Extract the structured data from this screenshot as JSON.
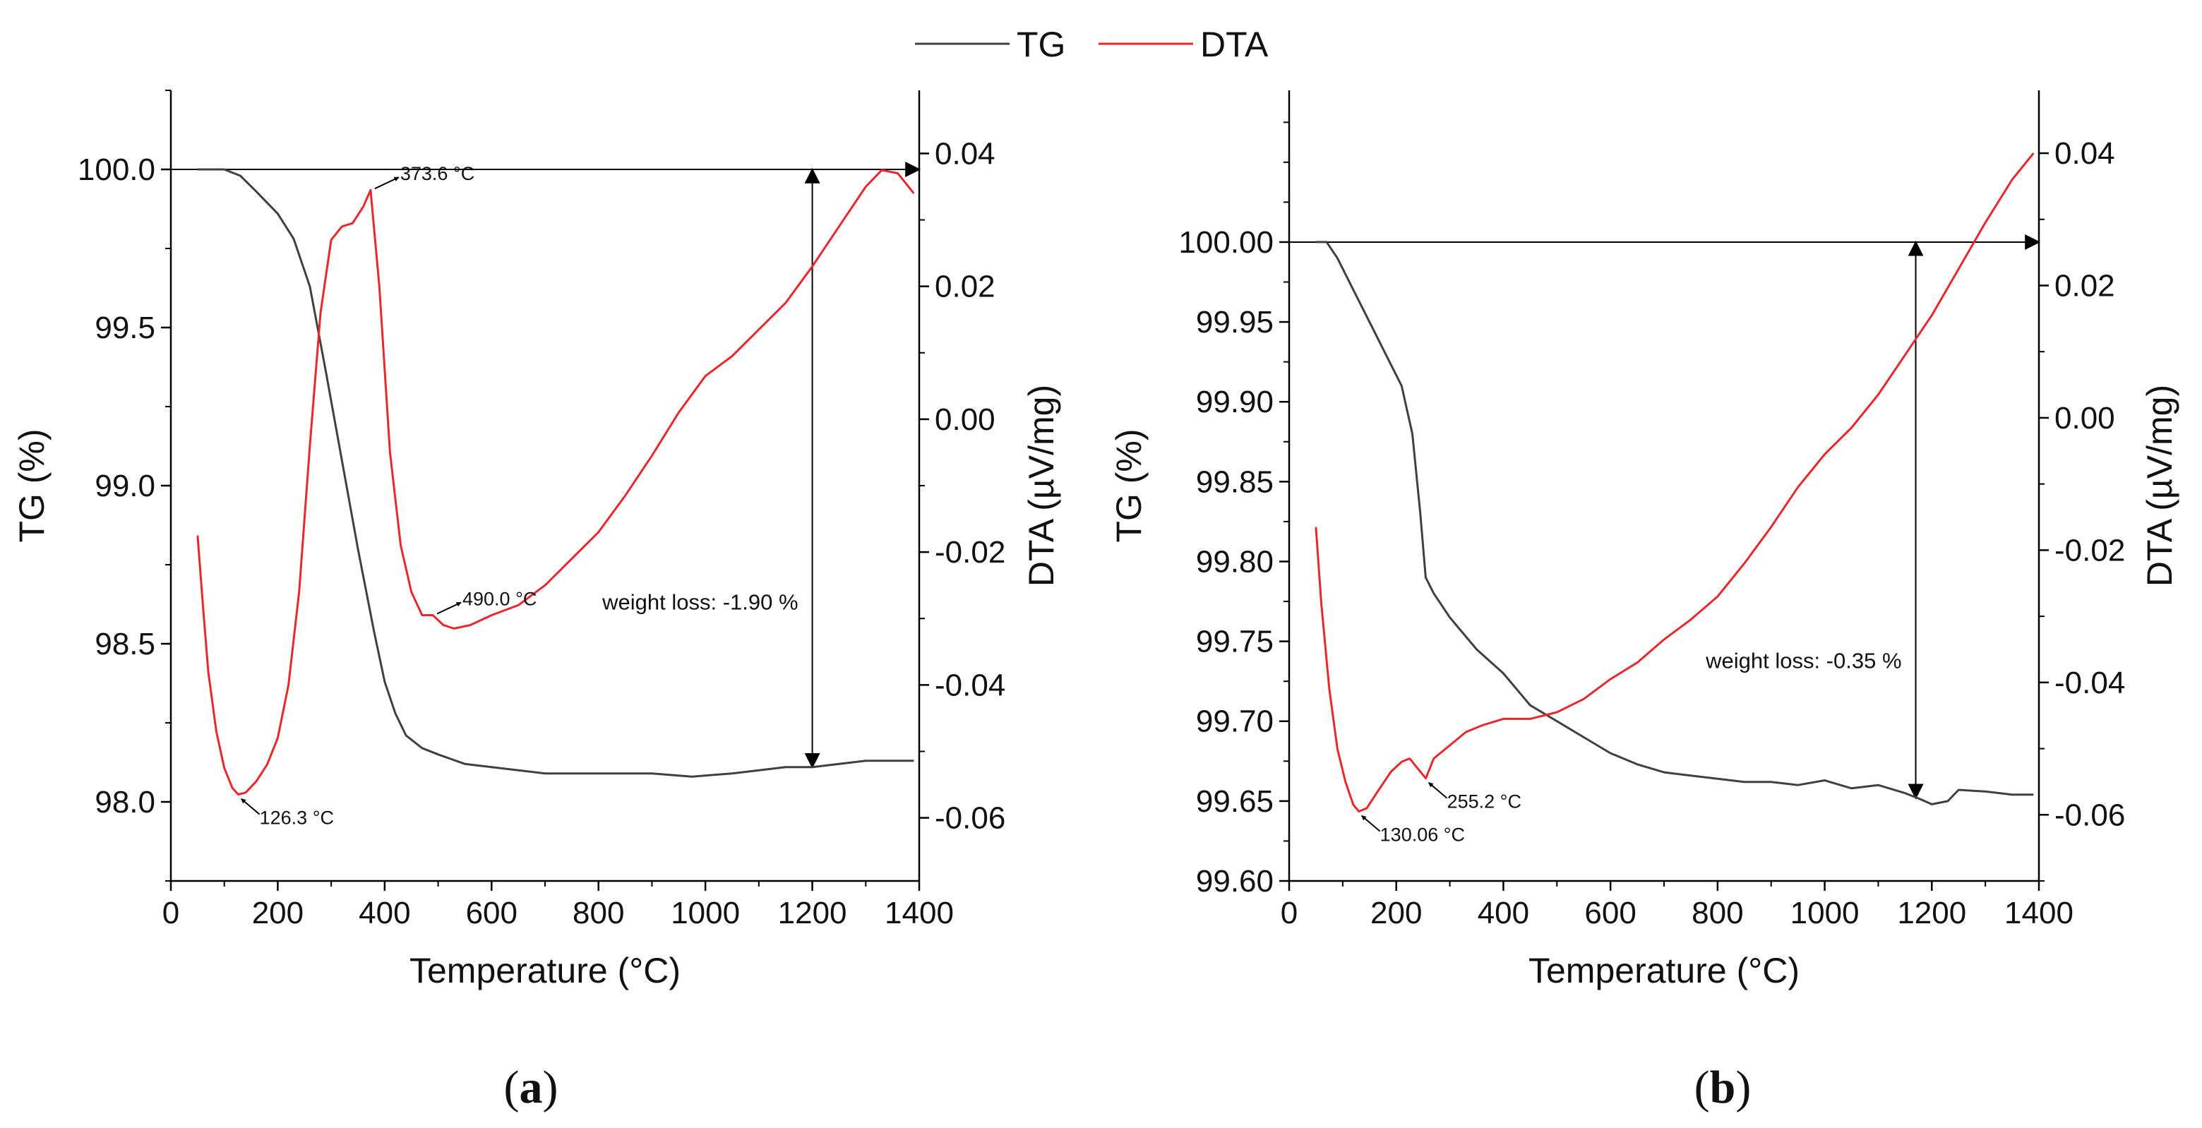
{
  "legend": {
    "tg_label": "TG",
    "dta_label": "DTA"
  },
  "colors": {
    "tg": "#404040",
    "dta": "#e8282a",
    "axis": "#000000"
  },
  "chart_data": [
    {
      "type": "line",
      "panel": "a",
      "panel_label": {
        "open": "(",
        "letter": "a",
        "close": ")"
      },
      "xlabel": "Temperature (°C)",
      "ylabel_left": "TG (%)",
      "ylabel_right": "DTA (µV/mg)",
      "xlim": [
        0,
        1400
      ],
      "ylim_left": [
        97.75,
        100.25
      ],
      "ylim_right": [
        -0.0695,
        0.0495
      ],
      "x_ticks": [
        0,
        200,
        400,
        600,
        800,
        1000,
        1200,
        1400
      ],
      "x_tick_labels": [
        "0",
        "200",
        "400",
        "600",
        "800",
        "1000",
        "1200",
        "1400"
      ],
      "yleft_ticks": [
        98.0,
        98.5,
        99.0,
        99.5,
        100.0
      ],
      "yleft_tick_labels": [
        "98.0",
        "98.5",
        "99.0",
        "99.5",
        "100.0"
      ],
      "yright_ticks": [
        -0.06,
        -0.04,
        -0.02,
        0.0,
        0.02,
        0.04
      ],
      "yright_tick_labels": [
        "-0.06",
        "-0.04",
        "-0.02",
        "0.00",
        "0.02",
        "0.04"
      ],
      "series": [
        {
          "name": "TG",
          "axis": "left",
          "points": [
            [
              50,
              100.0
            ],
            [
              100,
              100.0
            ],
            [
              130,
              99.98
            ],
            [
              160,
              99.93
            ],
            [
              200,
              99.86
            ],
            [
              230,
              99.78
            ],
            [
              260,
              99.63
            ],
            [
              290,
              99.36
            ],
            [
              320,
              99.08
            ],
            [
              350,
              98.8
            ],
            [
              380,
              98.54
            ],
            [
              400,
              98.38
            ],
            [
              420,
              98.28
            ],
            [
              440,
              98.21
            ],
            [
              470,
              98.17
            ],
            [
              500,
              98.15
            ],
            [
              550,
              98.12
            ],
            [
              600,
              98.11
            ],
            [
              700,
              98.09
            ],
            [
              800,
              98.09
            ],
            [
              900,
              98.09
            ],
            [
              975,
              98.08
            ],
            [
              1050,
              98.09
            ],
            [
              1100,
              98.1
            ],
            [
              1150,
              98.11
            ],
            [
              1200,
              98.11
            ],
            [
              1250,
              98.12
            ],
            [
              1300,
              98.13
            ],
            [
              1350,
              98.13
            ],
            [
              1390,
              98.13
            ]
          ]
        },
        {
          "name": "DTA",
          "axis": "right",
          "points": [
            [
              50,
              -0.0175
            ],
            [
              60,
              -0.028
            ],
            [
              70,
              -0.038
            ],
            [
              85,
              -0.047
            ],
            [
              100,
              -0.0525
            ],
            [
              115,
              -0.0555
            ],
            [
              126.3,
              -0.0565
            ],
            [
              140,
              -0.0562
            ],
            [
              160,
              -0.0545
            ],
            [
              180,
              -0.052
            ],
            [
              200,
              -0.048
            ],
            [
              220,
              -0.04
            ],
            [
              240,
              -0.026
            ],
            [
              260,
              -0.004
            ],
            [
              280,
              0.016
            ],
            [
              300,
              0.027
            ],
            [
              320,
              0.029
            ],
            [
              340,
              0.0295
            ],
            [
              360,
              0.032
            ],
            [
              373.6,
              0.0345
            ],
            [
              390,
              0.02
            ],
            [
              410,
              -0.005
            ],
            [
              430,
              -0.019
            ],
            [
              450,
              -0.026
            ],
            [
              470,
              -0.0295
            ],
            [
              490,
              -0.0295
            ],
            [
              510,
              -0.031
            ],
            [
              530,
              -0.0315
            ],
            [
              560,
              -0.031
            ],
            [
              600,
              -0.0295
            ],
            [
              650,
              -0.028
            ],
            [
              700,
              -0.025
            ],
            [
              750,
              -0.021
            ],
            [
              800,
              -0.017
            ],
            [
              850,
              -0.0115
            ],
            [
              900,
              -0.0055
            ],
            [
              950,
              0.001
            ],
            [
              1000,
              0.0065
            ],
            [
              1050,
              0.0095
            ],
            [
              1100,
              0.0135
            ],
            [
              1150,
              0.0175
            ],
            [
              1200,
              0.023
            ],
            [
              1250,
              0.029
            ],
            [
              1300,
              0.035
            ],
            [
              1330,
              0.0375
            ],
            [
              1360,
              0.037
            ],
            [
              1390,
              0.034
            ]
          ]
        }
      ],
      "annotations": [
        {
          "label": "373.6 °C",
          "x": 373.6,
          "y": 0.0345,
          "axis": "right",
          "placement": "upper-right"
        },
        {
          "label": "490.0 °C",
          "x": 490.0,
          "y": -0.0295,
          "axis": "right",
          "placement": "upper-right"
        },
        {
          "label": "126.3 °C",
          "x": 126.3,
          "y": -0.0565,
          "axis": "right",
          "placement": "lower-right"
        }
      ],
      "weight_loss": {
        "label": "weight loss: -1.90 %",
        "x": 1200,
        "y_from": 100.0,
        "y_to": 98.11,
        "hline_from_x": 0,
        "hline_to_x": 1400
      }
    },
    {
      "type": "line",
      "panel": "b",
      "panel_label": {
        "open": "(",
        "letter": "b",
        "close": ")"
      },
      "xlabel": "Temperature (°C)",
      "ylabel_left": "TG (%)",
      "ylabel_right": "DTA (µV/mg)",
      "xlim": [
        0,
        1400
      ],
      "ylim_left": [
        99.6,
        100.095
      ],
      "ylim_right": [
        -0.07,
        0.0495
      ],
      "x_ticks": [
        0,
        200,
        400,
        600,
        800,
        1000,
        1200,
        1400
      ],
      "x_tick_labels": [
        "0",
        "200",
        "400",
        "600",
        "800",
        "1000",
        "1200",
        "1400"
      ],
      "yleft_ticks": [
        99.6,
        99.65,
        99.7,
        99.75,
        99.8,
        99.85,
        99.9,
        99.95,
        100.0
      ],
      "yleft_tick_labels": [
        "99.60",
        "99.65",
        "99.70",
        "99.75",
        "99.80",
        "99.85",
        "99.90",
        "99.95",
        "100.00"
      ],
      "yright_ticks": [
        -0.06,
        -0.04,
        -0.02,
        0.0,
        0.02,
        0.04
      ],
      "yright_tick_labels": [
        "-0.06",
        "-0.04",
        "-0.02",
        "0.00",
        "0.02",
        "0.04"
      ],
      "series": [
        {
          "name": "TG",
          "axis": "left",
          "points": [
            [
              50,
              100.0
            ],
            [
              70,
              100.0
            ],
            [
              90,
              99.99
            ],
            [
              120,
              99.97
            ],
            [
              150,
              99.95
            ],
            [
              180,
              99.93
            ],
            [
              210,
              99.91
            ],
            [
              230,
              99.88
            ],
            [
              245,
              99.83
            ],
            [
              255,
              99.79
            ],
            [
              270,
              99.78
            ],
            [
              300,
              99.765
            ],
            [
              350,
              99.745
            ],
            [
              400,
              99.73
            ],
            [
              450,
              99.71
            ],
            [
              500,
              99.7
            ],
            [
              550,
              99.69
            ],
            [
              600,
              99.68
            ],
            [
              650,
              99.673
            ],
            [
              700,
              99.668
            ],
            [
              750,
              99.666
            ],
            [
              800,
              99.664
            ],
            [
              850,
              99.662
            ],
            [
              900,
              99.662
            ],
            [
              950,
              99.66
            ],
            [
              1000,
              99.663
            ],
            [
              1050,
              99.658
            ],
            [
              1100,
              99.66
            ],
            [
              1150,
              99.655
            ],
            [
              1180,
              99.651
            ],
            [
              1200,
              99.648
            ],
            [
              1230,
              99.65
            ],
            [
              1250,
              99.657
            ],
            [
              1300,
              99.656
            ],
            [
              1350,
              99.654
            ],
            [
              1390,
              99.654
            ]
          ]
        },
        {
          "name": "DTA",
          "axis": "right",
          "points": [
            [
              50,
              -0.0165
            ],
            [
              60,
              -0.028
            ],
            [
              75,
              -0.041
            ],
            [
              90,
              -0.05
            ],
            [
              105,
              -0.055
            ],
            [
              120,
              -0.0585
            ],
            [
              130.06,
              -0.0595
            ],
            [
              145,
              -0.059
            ],
            [
              165,
              -0.0565
            ],
            [
              190,
              -0.0535
            ],
            [
              210,
              -0.052
            ],
            [
              225,
              -0.0515
            ],
            [
              240,
              -0.053
            ],
            [
              255.2,
              -0.0545
            ],
            [
              270,
              -0.0515
            ],
            [
              300,
              -0.0495
            ],
            [
              330,
              -0.0475
            ],
            [
              360,
              -0.0465
            ],
            [
              400,
              -0.0455
            ],
            [
              450,
              -0.0455
            ],
            [
              500,
              -0.0445
            ],
            [
              550,
              -0.0425
            ],
            [
              600,
              -0.0395
            ],
            [
              650,
              -0.037
            ],
            [
              700,
              -0.0335
            ],
            [
              750,
              -0.0305
            ],
            [
              800,
              -0.027
            ],
            [
              850,
              -0.022
            ],
            [
              900,
              -0.0165
            ],
            [
              950,
              -0.0105
            ],
            [
              1000,
              -0.0055
            ],
            [
              1050,
              -0.0015
            ],
            [
              1100,
              0.0035
            ],
            [
              1150,
              0.0095
            ],
            [
              1200,
              0.0155
            ],
            [
              1250,
              0.0225
            ],
            [
              1300,
              0.0295
            ],
            [
              1350,
              0.036
            ],
            [
              1390,
              0.04
            ]
          ]
        }
      ],
      "annotations": [
        {
          "label": "130.06 °C",
          "x": 130.06,
          "y": -0.0595,
          "axis": "right",
          "placement": "lower-right"
        },
        {
          "label": "255.2 °C",
          "x": 255.2,
          "y": -0.0545,
          "axis": "right",
          "placement": "lower-right"
        }
      ],
      "weight_loss": {
        "label": "weight loss: -0.35 %",
        "x": 1170,
        "y_from": 100.0,
        "y_to": 99.652,
        "hline_from_x": 0,
        "hline_to_x": 1400
      }
    }
  ]
}
